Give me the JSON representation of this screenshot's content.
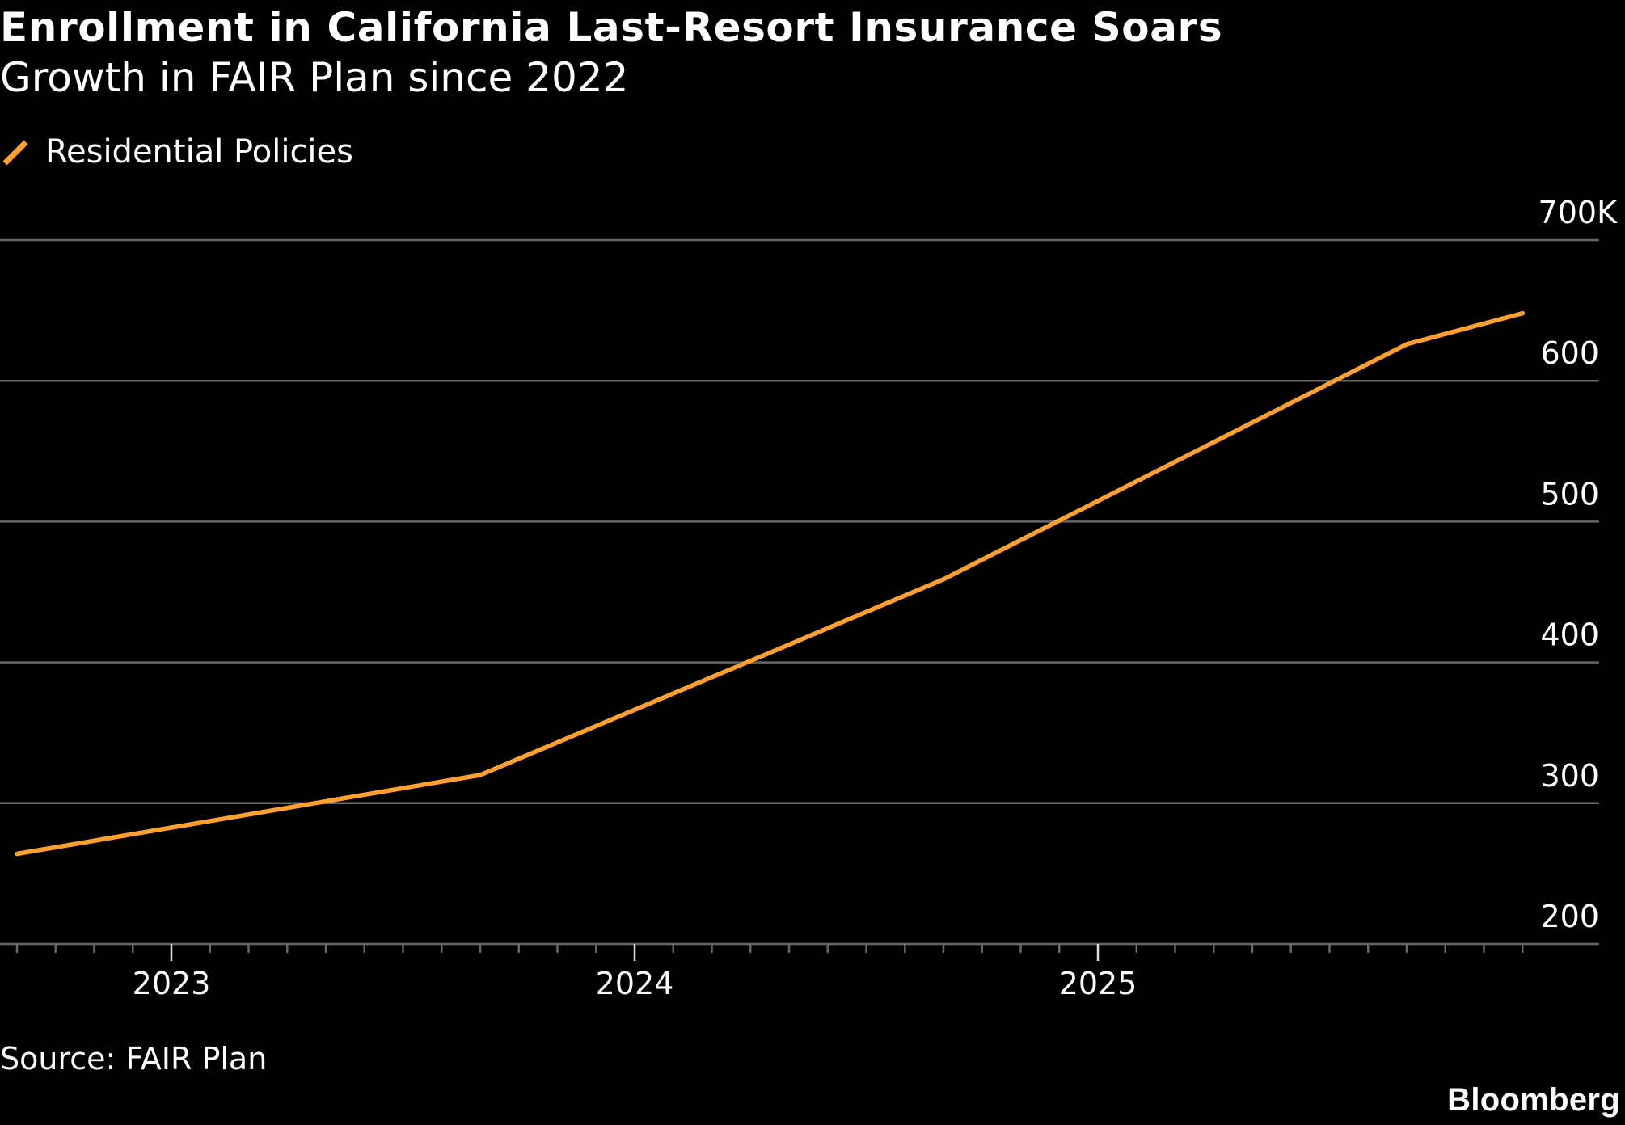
{
  "header": {
    "title": "Enrollment in California Last-Resort Insurance Soars",
    "subtitle": "Growth in FAIR Plan since 2022"
  },
  "legend": {
    "items": [
      {
        "label": "Residential Policies",
        "icon": "line-swatch-icon",
        "color": "#FFA02F"
      }
    ]
  },
  "footer": {
    "source": "Source: FAIR Plan",
    "logo": "Bloomberg"
  },
  "colors": {
    "background": "#000000",
    "series": "#FFA02F",
    "gridline": "#666666",
    "text": "#FFFFFF"
  },
  "chart_data": {
    "type": "line",
    "title": "Enrollment in California Last-Resort Insurance Soars",
    "subtitle": "Growth in FAIR Plan since 2022",
    "xlabel": "",
    "ylabel": "",
    "x_type": "time",
    "x_range": [
      "2022-09",
      "2025-12"
    ],
    "x_ticks": [
      {
        "label": "2023",
        "date": "2023-01"
      },
      {
        "label": "2024",
        "date": "2024-01"
      },
      {
        "label": "2025",
        "date": "2025-01"
      }
    ],
    "x_minor_ticks": "monthly",
    "ylim": [
      200,
      700
    ],
    "y_unit": "thousands",
    "y_ticks": [
      {
        "value": 200,
        "label": "200"
      },
      {
        "value": 300,
        "label": "300"
      },
      {
        "value": 400,
        "label": "400"
      },
      {
        "value": 500,
        "label": "500"
      },
      {
        "value": 600,
        "label": "600"
      },
      {
        "value": 700,
        "label": "700K"
      }
    ],
    "y_axis_side": "right",
    "grid": true,
    "legend_position": "top-left",
    "series": [
      {
        "name": "Residential Policies",
        "color": "#FFA02F",
        "points": [
          {
            "date": "2022-09",
            "value": 264
          },
          {
            "date": "2023-09",
            "value": 320
          },
          {
            "date": "2024-09",
            "value": 459
          },
          {
            "date": "2025-09",
            "value": 626
          },
          {
            "date": "2025-12",
            "value": 648
          }
        ]
      }
    ],
    "source": "Source: FAIR Plan"
  }
}
